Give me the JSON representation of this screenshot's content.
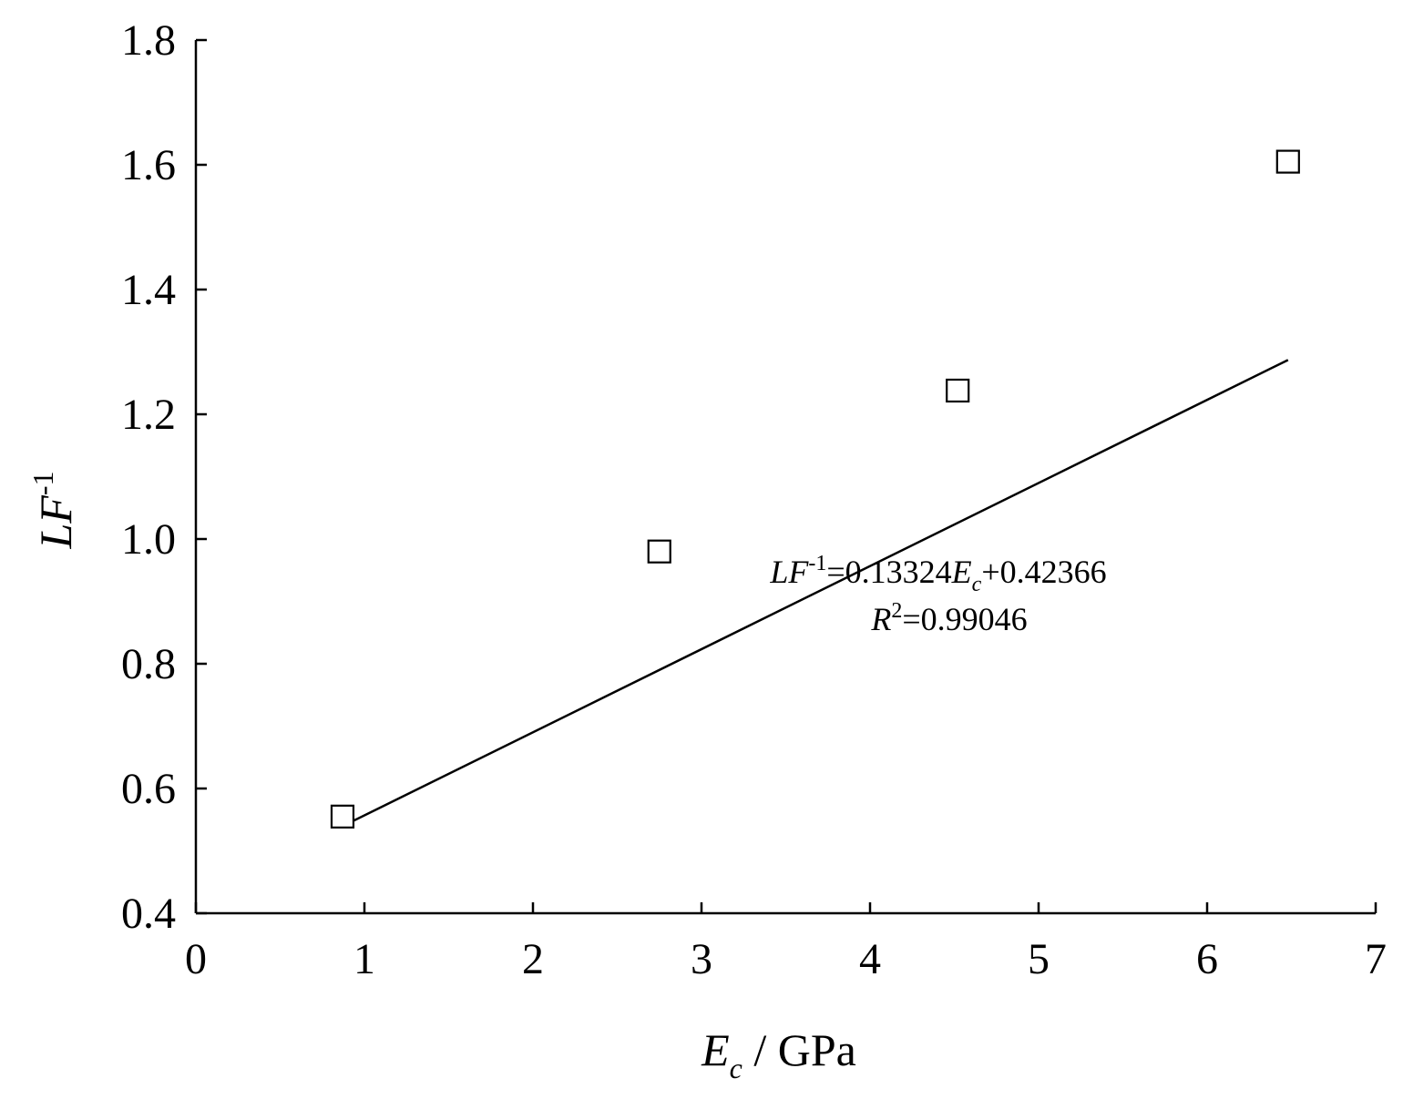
{
  "chart_data": {
    "type": "scatter",
    "xlabel": {
      "main": "E",
      "sub": "c",
      "rest": " / GPa"
    },
    "ylabel": {
      "main": "LF",
      "sup": "-1"
    },
    "xlim": [
      0,
      7
    ],
    "ylim": [
      0.4,
      1.8
    ],
    "x_ticks": [
      "0",
      "1",
      "2",
      "3",
      "4",
      "5",
      "6",
      "7"
    ],
    "y_ticks": [
      "0.4",
      "0.6",
      "0.8",
      "1.0",
      "1.2",
      "1.4",
      "1.6",
      "1.8"
    ],
    "grid": false,
    "series": [
      {
        "marker": "open-square",
        "points": [
          {
            "x": 0.87,
            "y": 0.555
          },
          {
            "x": 2.75,
            "y": 0.98
          },
          {
            "x": 4.52,
            "y": 1.238
          },
          {
            "x": 6.48,
            "y": 1.605
          }
        ]
      }
    ],
    "fit": {
      "slope": 0.13324,
      "intercept": 0.42366,
      "x_range": [
        0.87,
        6.48
      ]
    },
    "annotation": {
      "eq_lhs": "LF",
      "eq_sup": "-1",
      "eq_mid": "=0.13324",
      "eq_var": "E",
      "eq_var_sub": "c",
      "eq_rhs": "+0.42366",
      "r2_var": "R",
      "r2_sup": "2",
      "r2_val": "=0.99046"
    }
  }
}
